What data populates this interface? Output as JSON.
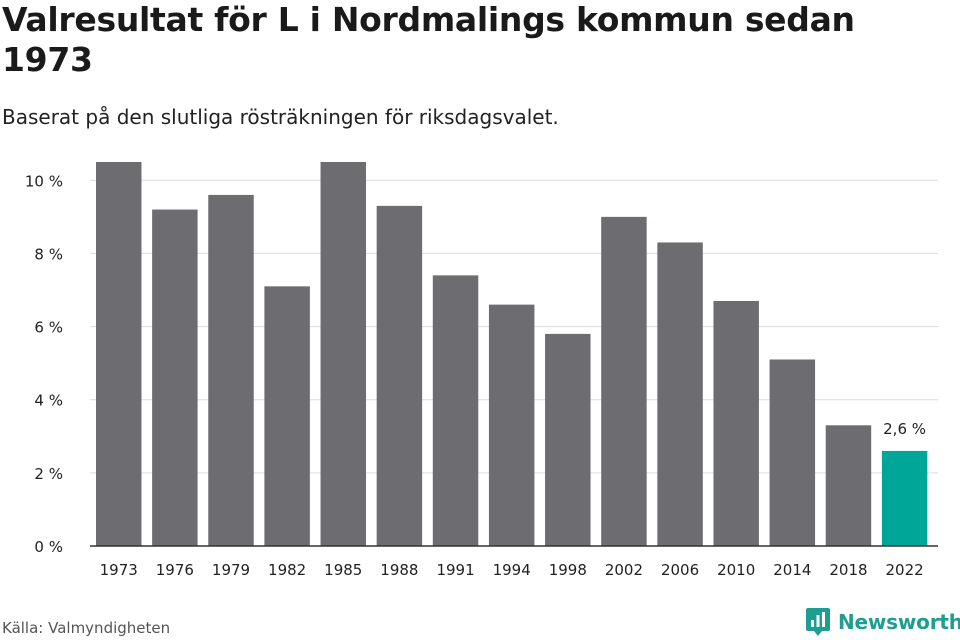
{
  "header": {
    "title": "Valresultat för L i Nordmalings kommun sedan 1973",
    "subtitle": "Baserat på den slutliga rösträkningen för riksdagsvalet."
  },
  "footer": {
    "source": "Källa: Valmyndigheten",
    "brand": "Newsworthy",
    "brand_icon": "newsworthy-logo-icon"
  },
  "colors": {
    "bar": "#6d6c71",
    "highlight": "#00a698",
    "grid": "#dcdcdc",
    "axis": "#333333",
    "brand": "#1e9e92"
  },
  "chart_data": {
    "type": "bar",
    "categories": [
      "1973",
      "1976",
      "1979",
      "1982",
      "1985",
      "1988",
      "1991",
      "1994",
      "1998",
      "2002",
      "2006",
      "2010",
      "2014",
      "2018",
      "2022"
    ],
    "values": [
      10.5,
      9.2,
      9.6,
      7.1,
      10.5,
      9.3,
      7.4,
      6.6,
      5.8,
      9.0,
      8.3,
      6.7,
      5.1,
      3.3,
      2.6
    ],
    "unit": "%",
    "highlight_index": 14,
    "data_labels": [
      {
        "index": 14,
        "text": "2,6 %"
      }
    ],
    "yticks": [
      0,
      2,
      4,
      6,
      8,
      10
    ],
    "ytick_labels": [
      "0 %",
      "2 %",
      "4 %",
      "6 %",
      "8 %",
      "10 %"
    ],
    "ylim": [
      0,
      10.5
    ],
    "grid": true,
    "legend": "none",
    "xlabel": "",
    "ylabel": ""
  }
}
